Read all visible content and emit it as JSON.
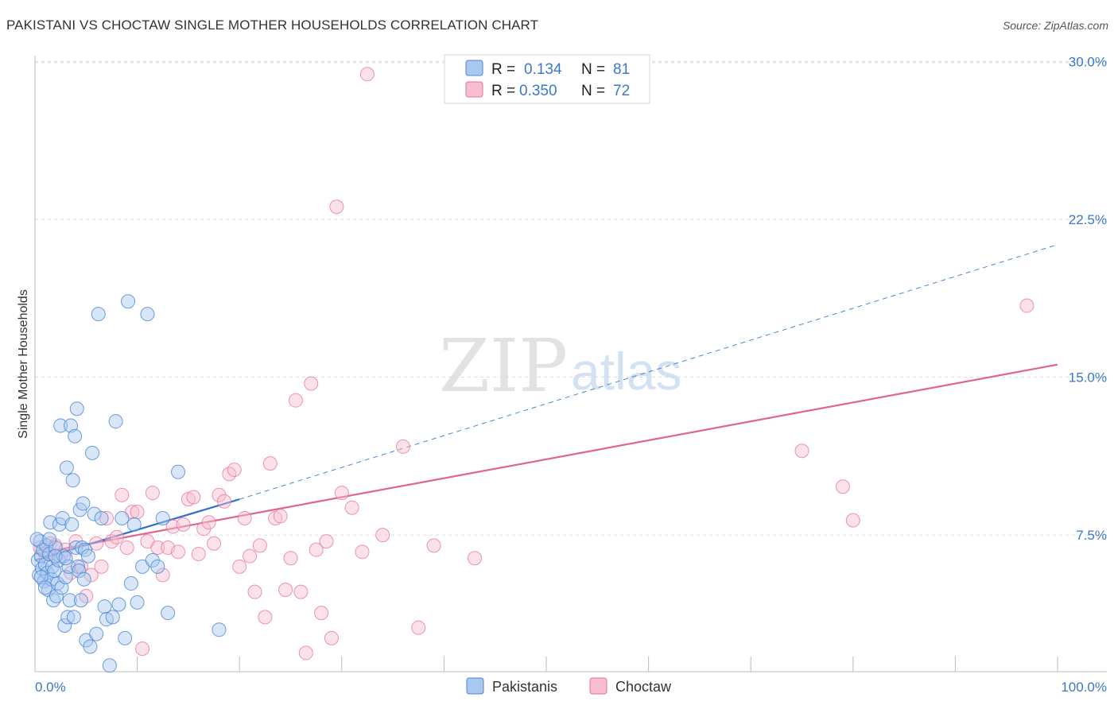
{
  "title": "PAKISTANI VS CHOCTAW SINGLE MOTHER HOUSEHOLDS CORRELATION CHART",
  "source": "Source: ZipAtlas.com",
  "watermark": {
    "zip": "ZIP",
    "atlas": "atlas"
  },
  "colors": {
    "blue": "#4a86d4",
    "blue_fill": "#a8c8ef",
    "blue_line": "#2f6fc6",
    "pink": "#e8709a",
    "pink_fill": "#f6bfd1",
    "pink_line": "#e0658f",
    "tick": "#3b78c8",
    "grid": "#dddddd"
  },
  "legend": {
    "rows": [
      {
        "r_label": "R =",
        "r_value": "0.134",
        "n_label": "N =",
        "n_value": "81"
      },
      {
        "r_label": "R =",
        "r_value": "0.350",
        "n_label": "N =",
        "n_value": "72"
      }
    ]
  },
  "chart_data": {
    "type": "scatter",
    "title": "PAKISTANI VS CHOCTAW SINGLE MOTHER HOUSEHOLDS CORRELATION CHART",
    "xlabel": "",
    "ylabel": "Single Mother Households",
    "xlim": [
      0,
      100
    ],
    "ylim": [
      0,
      31
    ],
    "y_ticks": [
      7.5,
      15.0,
      22.5,
      30.0
    ],
    "y_tick_labels": [
      "7.5%",
      "15.0%",
      "22.5%",
      "30.0%"
    ],
    "x_tick_labels": [
      "0.0%",
      "100.0%"
    ],
    "legend_position": "bottom-center",
    "series": [
      {
        "name": "Pakistanis",
        "r": 0.134,
        "n": 81,
        "trend": {
          "x0": 0,
          "y0": 6.3,
          "x1": 20,
          "y1": 9.2,
          "dashed_to_x": 100,
          "dashed_to_y": 21.3
        },
        "points": [
          [
            0.3,
            6.3
          ],
          [
            0.4,
            5.6
          ],
          [
            0.5,
            7.2
          ],
          [
            0.6,
            6.5
          ],
          [
            0.7,
            5.9
          ],
          [
            0.8,
            6.8
          ],
          [
            0.9,
            5.3
          ],
          [
            1.0,
            6.1
          ],
          [
            1.1,
            7.0
          ],
          [
            1.2,
            5.7
          ],
          [
            1.3,
            4.9
          ],
          [
            1.4,
            6.6
          ],
          [
            1.5,
            8.1
          ],
          [
            1.6,
            5.4
          ],
          [
            1.7,
            6.0
          ],
          [
            1.8,
            4.4
          ],
          [
            1.9,
            5.8
          ],
          [
            2.0,
            6.9
          ],
          [
            2.1,
            4.6
          ],
          [
            2.2,
            5.2
          ],
          [
            2.3,
            6.3
          ],
          [
            2.4,
            8.0
          ],
          [
            2.5,
            12.7
          ],
          [
            2.6,
            5.0
          ],
          [
            2.7,
            8.3
          ],
          [
            2.8,
            6.5
          ],
          [
            2.9,
            3.2
          ],
          [
            3.0,
            5.5
          ],
          [
            3.1,
            10.7
          ],
          [
            3.2,
            3.6
          ],
          [
            3.3,
            6.0
          ],
          [
            3.4,
            4.4
          ],
          [
            3.5,
            12.7
          ],
          [
            3.6,
            8.0
          ],
          [
            3.7,
            10.1
          ],
          [
            3.8,
            3.6
          ],
          [
            3.9,
            12.2
          ],
          [
            4.0,
            6.9
          ],
          [
            4.1,
            13.5
          ],
          [
            4.2,
            6.0
          ],
          [
            4.3,
            5.8
          ],
          [
            4.4,
            8.7
          ],
          [
            4.5,
            4.4
          ],
          [
            4.6,
            6.9
          ],
          [
            4.7,
            9.0
          ],
          [
            4.8,
            5.4
          ],
          [
            4.9,
            6.8
          ],
          [
            5.0,
            2.5
          ],
          [
            5.2,
            6.5
          ],
          [
            5.4,
            2.2
          ],
          [
            5.6,
            11.4
          ],
          [
            5.8,
            8.5
          ],
          [
            6.0,
            2.8
          ],
          [
            6.2,
            18.0
          ],
          [
            6.5,
            8.3
          ],
          [
            6.8,
            4.1
          ],
          [
            7.0,
            3.5
          ],
          [
            7.3,
            1.3
          ],
          [
            7.6,
            3.6
          ],
          [
            7.9,
            12.9
          ],
          [
            8.2,
            4.2
          ],
          [
            8.5,
            8.3
          ],
          [
            8.8,
            2.6
          ],
          [
            9.1,
            18.6
          ],
          [
            9.4,
            5.2
          ],
          [
            9.7,
            8.0
          ],
          [
            10.0,
            4.3
          ],
          [
            10.5,
            6.0
          ],
          [
            11.0,
            18.0
          ],
          [
            11.5,
            6.3
          ],
          [
            12.0,
            6.0
          ],
          [
            12.5,
            8.3
          ],
          [
            13.0,
            3.8
          ],
          [
            14.0,
            10.5
          ],
          [
            0.2,
            7.3
          ],
          [
            0.6,
            5.5
          ],
          [
            1.0,
            5.0
          ],
          [
            1.4,
            7.3
          ],
          [
            2.0,
            6.5
          ],
          [
            3.0,
            6.4
          ],
          [
            18.0,
            3.0
          ]
        ]
      },
      {
        "name": "Choctaw",
        "r": 0.35,
        "n": 72,
        "trend": {
          "x0": 0,
          "y0": 6.6,
          "x1": 100,
          "y1": 15.6
        },
        "points": [
          [
            0.5,
            6.9
          ],
          [
            1.0,
            6.6
          ],
          [
            1.5,
            7.1
          ],
          [
            2.0,
            7.0
          ],
          [
            2.5,
            6.5
          ],
          [
            3.0,
            6.8
          ],
          [
            3.5,
            5.7
          ],
          [
            4.0,
            7.2
          ],
          [
            4.5,
            6.0
          ],
          [
            5.0,
            4.6
          ],
          [
            5.5,
            5.6
          ],
          [
            6.0,
            7.1
          ],
          [
            6.5,
            6.0
          ],
          [
            7.0,
            8.3
          ],
          [
            7.5,
            7.2
          ],
          [
            8.0,
            7.4
          ],
          [
            8.5,
            9.4
          ],
          [
            9.0,
            6.9
          ],
          [
            9.5,
            8.6
          ],
          [
            10.0,
            8.6
          ],
          [
            10.5,
            2.1
          ],
          [
            11.0,
            7.2
          ],
          [
            11.5,
            9.5
          ],
          [
            12.0,
            6.9
          ],
          [
            12.5,
            5.6
          ],
          [
            13.0,
            6.9
          ],
          [
            13.5,
            7.9
          ],
          [
            14.0,
            6.7
          ],
          [
            14.5,
            8.0
          ],
          [
            15.0,
            9.2
          ],
          [
            15.5,
            9.3
          ],
          [
            16.0,
            6.6
          ],
          [
            16.5,
            7.8
          ],
          [
            17.0,
            8.1
          ],
          [
            17.5,
            7.1
          ],
          [
            18.0,
            9.4
          ],
          [
            18.5,
            9.1
          ],
          [
            19.0,
            10.4
          ],
          [
            19.5,
            10.6
          ],
          [
            20.0,
            6.0
          ],
          [
            20.5,
            8.3
          ],
          [
            21.0,
            6.5
          ],
          [
            21.5,
            4.8
          ],
          [
            22.0,
            7.0
          ],
          [
            22.5,
            3.6
          ],
          [
            23.0,
            10.9
          ],
          [
            23.5,
            8.3
          ],
          [
            24.0,
            8.4
          ],
          [
            24.5,
            4.9
          ],
          [
            25.0,
            6.4
          ],
          [
            25.5,
            13.9
          ],
          [
            26.0,
            4.8
          ],
          [
            26.5,
            1.9
          ],
          [
            27.0,
            14.7
          ],
          [
            27.5,
            6.8
          ],
          [
            28.0,
            3.8
          ],
          [
            28.5,
            7.2
          ],
          [
            29.0,
            2.6
          ],
          [
            29.5,
            23.1
          ],
          [
            30.0,
            9.5
          ],
          [
            31.0,
            8.8
          ],
          [
            32.0,
            6.7
          ],
          [
            32.5,
            29.4
          ],
          [
            34.0,
            7.5
          ],
          [
            36.0,
            11.7
          ],
          [
            37.5,
            3.1
          ],
          [
            39.0,
            7.0
          ],
          [
            43.0,
            6.4
          ],
          [
            75.0,
            11.5
          ],
          [
            79.0,
            9.8
          ],
          [
            80.0,
            8.2
          ],
          [
            97.0,
            18.4
          ]
        ]
      }
    ]
  },
  "bottom_legend": [
    {
      "label": "Pakistanis"
    },
    {
      "label": "Choctaw"
    }
  ]
}
